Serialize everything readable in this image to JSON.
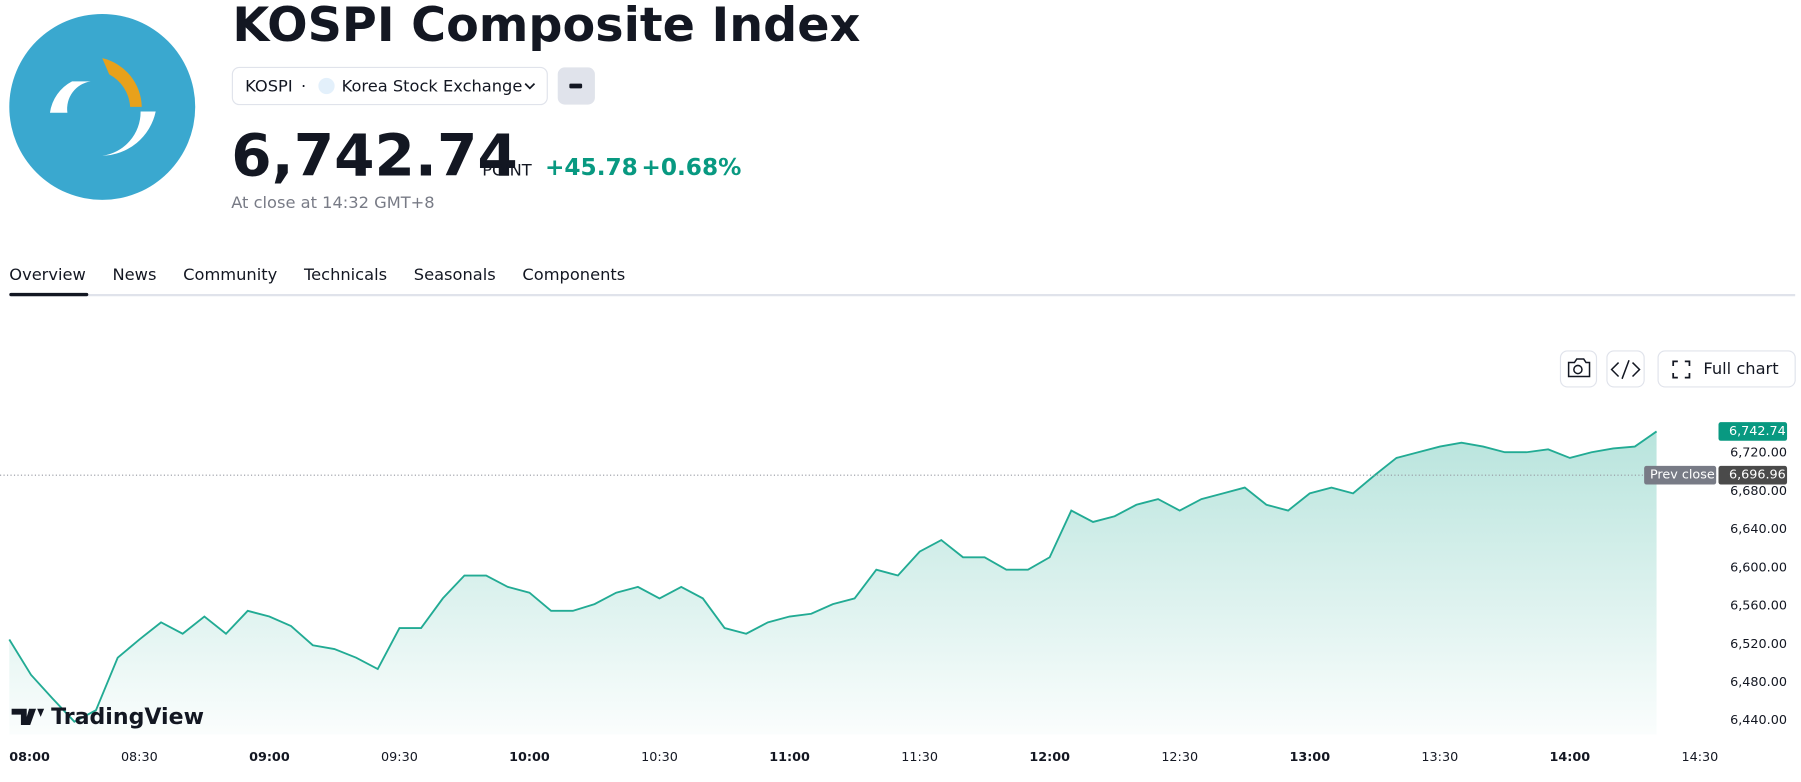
{
  "header": {
    "title": "KOSPI Composite Index",
    "symbol": "KOSPI",
    "separator": "·",
    "exchange": "Korea Stock Exchange",
    "price": "6,742.74",
    "unit": "POINT",
    "change": "+45.78",
    "change_percent": "+0.68%",
    "status": "At close at 14:32 GMT+8"
  },
  "tabs": [
    "Overview",
    "News",
    "Community",
    "Technicals",
    "Seasonals",
    "Components"
  ],
  "toolbar": {
    "full_chart": "Full chart"
  },
  "chart_data": {
    "type": "area",
    "color": "#22ab94",
    "grid": false,
    "watermark": "TradingView",
    "x": [
      "08:00",
      "08:05",
      "08:10",
      "08:15",
      "08:20",
      "08:25",
      "08:30",
      "08:35",
      "08:40",
      "08:45",
      "08:50",
      "08:55",
      "09:00",
      "09:05",
      "09:10",
      "09:15",
      "09:20",
      "09:25",
      "09:30",
      "09:35",
      "09:40",
      "09:45",
      "09:50",
      "09:55",
      "10:00",
      "10:05",
      "10:10",
      "10:15",
      "10:20",
      "10:25",
      "10:30",
      "10:35",
      "10:40",
      "10:45",
      "10:50",
      "10:55",
      "11:00",
      "11:05",
      "11:10",
      "11:15",
      "11:20",
      "11:25",
      "11:30",
      "11:35",
      "11:40",
      "11:45",
      "11:50",
      "11:55",
      "12:00",
      "12:05",
      "12:10",
      "12:15",
      "12:20",
      "12:25",
      "12:30",
      "12:35",
      "12:40",
      "12:45",
      "12:50",
      "12:55",
      "13:00",
      "13:05",
      "13:10",
      "13:15",
      "13:20",
      "13:25",
      "13:30",
      "13:35",
      "13:40",
      "13:45",
      "13:50",
      "13:55",
      "14:00",
      "14:05",
      "14:10",
      "14:15",
      "14:20"
    ],
    "values": [
      6525,
      6488,
      6463,
      6439,
      6451,
      6506,
      6525,
      6543,
      6531,
      6549,
      6531,
      6555,
      6549,
      6539,
      6519,
      6515,
      6506,
      6494,
      6537,
      6537,
      6568,
      6592,
      6592,
      6580,
      6574,
      6555,
      6555,
      6562,
      6574,
      6580,
      6568,
      6580,
      6568,
      6537,
      6531,
      6543,
      6549,
      6552,
      6562,
      6568,
      6598,
      6592,
      6617,
      6629,
      6611,
      6611,
      6598,
      6598,
      6611,
      6660,
      6648,
      6654,
      6666,
      6672,
      6660,
      6672,
      6678,
      6684,
      6666,
      6660,
      6678,
      6684,
      6678,
      6697,
      6715,
      6721,
      6727,
      6731,
      6727,
      6721,
      6721,
      6724,
      6715,
      6721,
      6725,
      6727,
      6742.74
    ],
    "xlim": [
      "08:00",
      "14:30"
    ],
    "xticks": [
      "08:00",
      "08:30",
      "09:00",
      "09:30",
      "10:00",
      "10:30",
      "11:00",
      "11:30",
      "12:00",
      "12:30",
      "13:00",
      "13:30",
      "14:00",
      "14:30"
    ],
    "ylim": [
      6425.7,
      6762.6
    ],
    "yticks": [
      {
        "value": 6440,
        "label": "6,440.00"
      },
      {
        "value": 6480,
        "label": "6,480.00"
      },
      {
        "value": 6520,
        "label": "6,520.00"
      },
      {
        "value": 6560,
        "label": "6,560.00"
      },
      {
        "value": 6600,
        "label": "6,600.00"
      },
      {
        "value": 6640,
        "label": "6,640.00"
      },
      {
        "value": 6680,
        "label": "6,680.00"
      },
      {
        "value": 6720,
        "label": "6,720.00"
      }
    ],
    "last_price": {
      "value": 6742.74,
      "label": "6,742.74"
    },
    "prev_close": {
      "name": "Prev close",
      "value": 6696.96,
      "label": "6,696.96"
    }
  }
}
